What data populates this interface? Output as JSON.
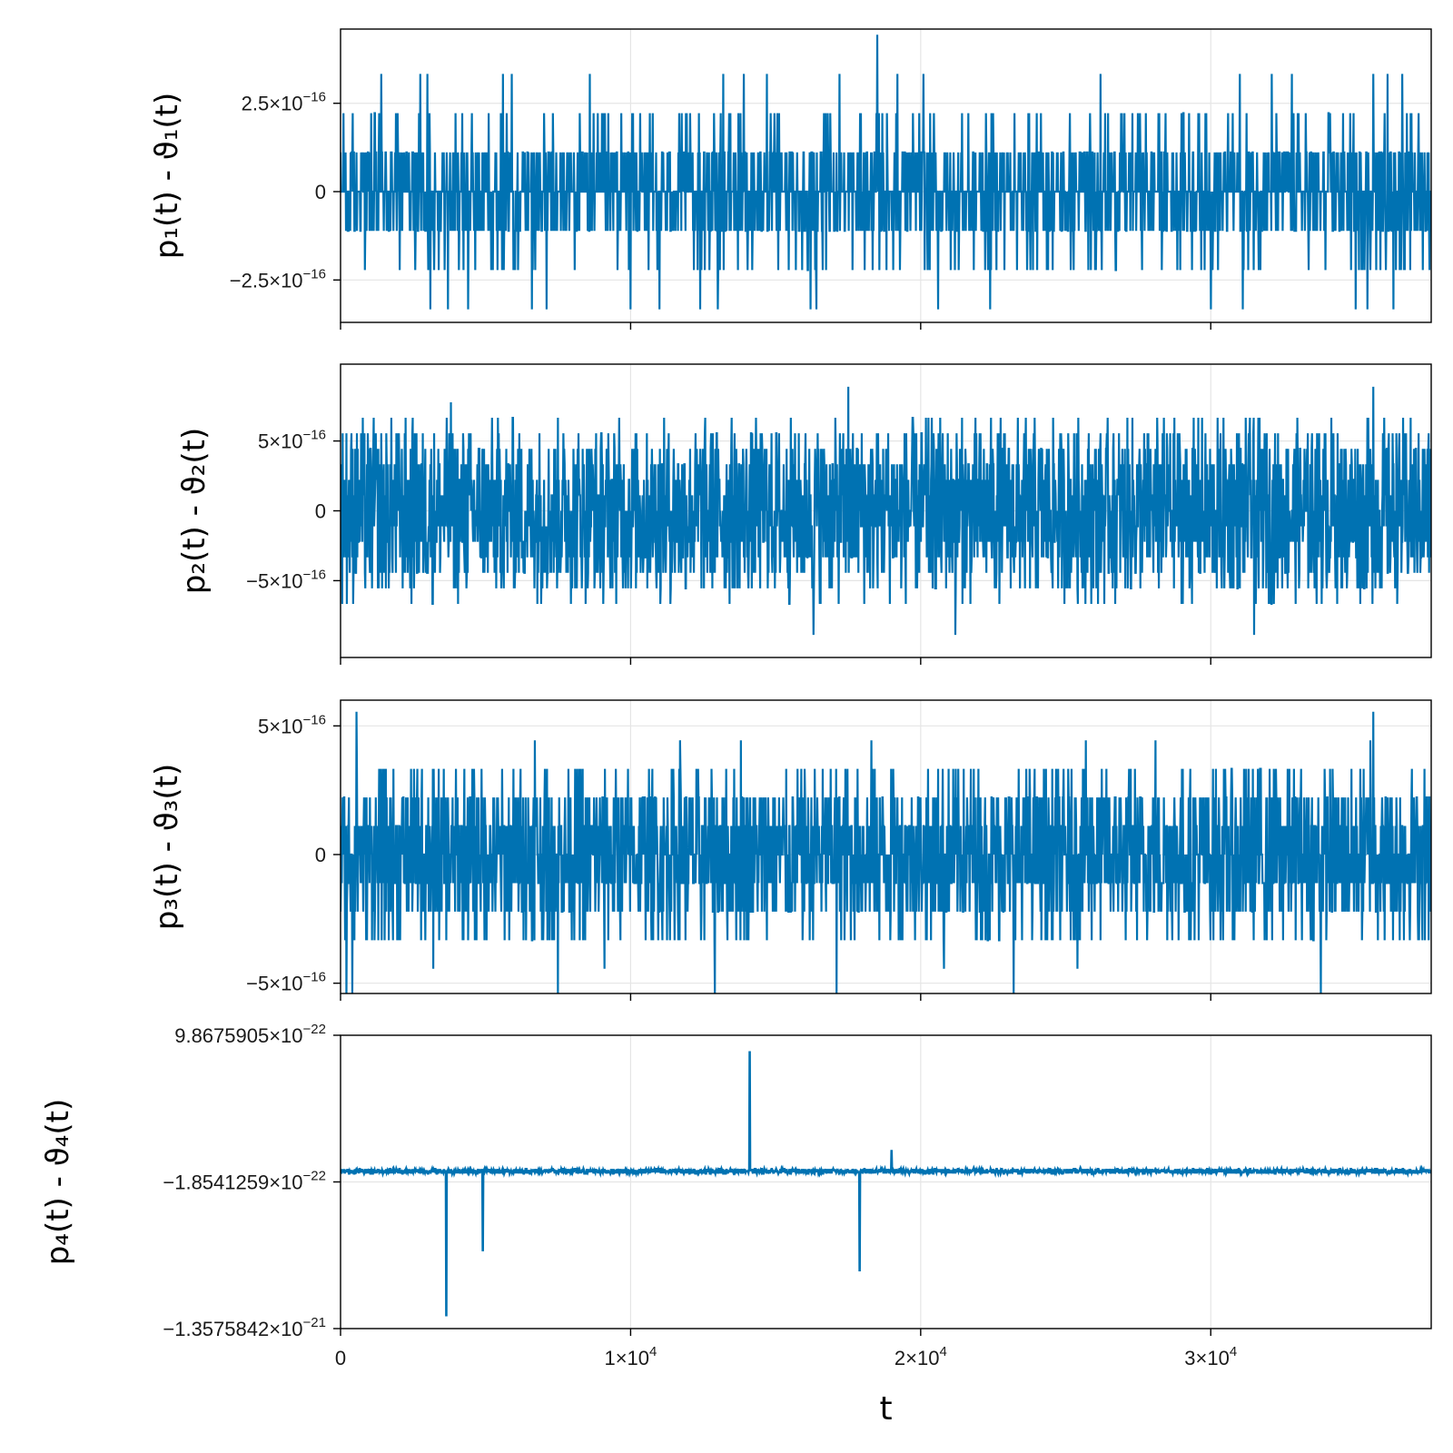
{
  "chart_data": {
    "type": "line",
    "color": "#0072b2",
    "xlabel": "t",
    "xlim": [
      0,
      37600
    ],
    "xticks": [
      {
        "value": 0,
        "label": "0",
        "exp": ""
      },
      {
        "value": 10000,
        "label": "1×10",
        "exp": "4"
      },
      {
        "value": 20000,
        "label": "2×10",
        "exp": "4"
      },
      {
        "value": 30000,
        "label": "3×10",
        "exp": "4"
      }
    ],
    "panels": [
      {
        "ylabel": "p₁(t) - ϑ₁(t)",
        "ylim": [
          -3.7e-16,
          4.6e-16
        ],
        "yticks": [
          {
            "value": 2.5e-16,
            "label": "2.5×10",
            "exp": "−16"
          },
          {
            "value": 0,
            "label": "0",
            "exp": ""
          },
          {
            "value": -2.5e-16,
            "label": "−2.5×10",
            "exp": "−16"
          }
        ],
        "quantum": 1.11e-16,
        "levels": [
          -2,
          -1,
          0,
          1,
          2
        ],
        "weights": [
          0.04,
          0.2,
          0.52,
          0.2,
          0.04
        ],
        "spikes": [
          {
            "x": 1400,
            "y": 3.33e-16
          },
          {
            "x": 2750,
            "y": 3.33e-16
          },
          {
            "x": 3000,
            "y": 3.33e-16
          },
          {
            "x": 5600,
            "y": 3.33e-16
          },
          {
            "x": 5900,
            "y": 3.33e-16
          },
          {
            "x": 8600,
            "y": 3.33e-16
          },
          {
            "x": 13200,
            "y": 3.33e-16
          },
          {
            "x": 13900,
            "y": 3.33e-16
          },
          {
            "x": 14700,
            "y": 3.33e-16
          },
          {
            "x": 18500,
            "y": 4.44e-16
          },
          {
            "x": 17200,
            "y": 3.33e-16
          },
          {
            "x": 19200,
            "y": 3.33e-16
          },
          {
            "x": 20100,
            "y": 3.33e-16
          },
          {
            "x": 26200,
            "y": 3.33e-16
          },
          {
            "x": 31000,
            "y": 3.33e-16
          },
          {
            "x": 32100,
            "y": 3.33e-16
          },
          {
            "x": 32800,
            "y": 3.33e-16
          },
          {
            "x": 35600,
            "y": 3.33e-16
          },
          {
            "x": 36100,
            "y": 3.33e-16
          },
          {
            "x": 36600,
            "y": 3.33e-16
          },
          {
            "x": 3100,
            "y": -3.33e-16
          },
          {
            "x": 3700,
            "y": -3.33e-16
          },
          {
            "x": 4400,
            "y": -3.33e-16
          },
          {
            "x": 6600,
            "y": -3.33e-16
          },
          {
            "x": 7100,
            "y": -3.33e-16
          },
          {
            "x": 10000,
            "y": -3.33e-16
          },
          {
            "x": 11000,
            "y": -3.33e-16
          },
          {
            "x": 12400,
            "y": -3.33e-16
          },
          {
            "x": 13000,
            "y": -3.33e-16
          },
          {
            "x": 16200,
            "y": -3.33e-16
          },
          {
            "x": 16400,
            "y": -3.33e-16
          },
          {
            "x": 20600,
            "y": -3.33e-16
          },
          {
            "x": 22400,
            "y": -3.33e-16
          },
          {
            "x": 30000,
            "y": -3.33e-16
          },
          {
            "x": 31100,
            "y": -3.33e-16
          },
          {
            "x": 35000,
            "y": -3.33e-16
          },
          {
            "x": 35400,
            "y": -3.33e-16
          },
          {
            "x": 36300,
            "y": -3.33e-16
          }
        ]
      },
      {
        "ylabel": "p₂(t) - ϑ₂(t)",
        "ylim": [
          -1.05e-15,
          1.05e-15
        ],
        "yticks": [
          {
            "value": 5e-16,
            "label": "5×10",
            "exp": "−16"
          },
          {
            "value": 0,
            "label": "0",
            "exp": ""
          },
          {
            "value": -5e-16,
            "label": "−5×10",
            "exp": "−16"
          }
        ],
        "quantum": 1.11e-16,
        "levels": [
          -6,
          -5,
          -4,
          -3,
          -2,
          -1,
          0,
          1,
          2,
          3,
          4,
          5,
          6
        ],
        "weights": [
          0.02,
          0.05,
          0.08,
          0.09,
          0.1,
          0.1,
          0.12,
          0.1,
          0.1,
          0.09,
          0.08,
          0.05,
          0.02
        ],
        "spikes": [
          {
            "x": 3800,
            "y": 7.77e-16
          },
          {
            "x": 17500,
            "y": 8.88e-16
          },
          {
            "x": 35600,
            "y": 8.88e-16
          },
          {
            "x": 16300,
            "y": -8.88e-16
          },
          {
            "x": 21200,
            "y": -8.88e-16
          },
          {
            "x": 31500,
            "y": -8.88e-16
          }
        ]
      },
      {
        "ylabel": "p₃(t) - ϑ₃(t)",
        "ylim": [
          -5.4e-16,
          6e-16
        ],
        "yticks": [
          {
            "value": 5e-16,
            "label": "5×10",
            "exp": "−16"
          },
          {
            "value": 0,
            "label": "0",
            "exp": ""
          },
          {
            "value": -5e-16,
            "label": "−5×10",
            "exp": "−16"
          }
        ],
        "quantum": 1.11e-16,
        "levels": [
          -3,
          -2,
          -1,
          0,
          1,
          2,
          3
        ],
        "weights": [
          0.05,
          0.13,
          0.2,
          0.24,
          0.2,
          0.13,
          0.05
        ],
        "spikes": [
          {
            "x": 550,
            "y": 5.55e-16
          },
          {
            "x": 35600,
            "y": 5.55e-16
          },
          {
            "x": 35500,
            "y": 4.44e-16
          },
          {
            "x": 6700,
            "y": 4.44e-16
          },
          {
            "x": 11700,
            "y": 4.44e-16
          },
          {
            "x": 13800,
            "y": 4.44e-16
          },
          {
            "x": 18300,
            "y": 4.44e-16
          },
          {
            "x": 25700,
            "y": 4.44e-16
          },
          {
            "x": 28100,
            "y": 4.44e-16
          },
          {
            "x": 200,
            "y": -5.55e-16
          },
          {
            "x": 400,
            "y": -5.55e-16
          },
          {
            "x": 7500,
            "y": -5.55e-16
          },
          {
            "x": 12900,
            "y": -5.55e-16
          },
          {
            "x": 17100,
            "y": -5.55e-16
          },
          {
            "x": 23200,
            "y": -5.55e-16
          },
          {
            "x": 33800,
            "y": -5.55e-16
          },
          {
            "x": 3200,
            "y": -4.44e-16
          },
          {
            "x": 9100,
            "y": -4.44e-16
          },
          {
            "x": 20800,
            "y": -4.44e-16
          },
          {
            "x": 25400,
            "y": -4.44e-16
          }
        ]
      },
      {
        "ylabel": "p₄(t) - ϑ₄(t)",
        "ylim": [
          -1.3575842e-21,
          9.8675905e-22
        ],
        "yticks": [
          {
            "value": 9.8675905e-22,
            "label": "9.8675905×10",
            "exp": "−22"
          },
          {
            "value": -1.8541259e-22,
            "label": "−1.8541259×10",
            "exp": "−22"
          },
          {
            "value": -1.3575842e-21,
            "label": "−1.3575842×10",
            "exp": "−21"
          }
        ],
        "base": -1e-22,
        "noise": 2.2e-23,
        "spikes": [
          {
            "x": 14100,
            "y": 8.6e-22
          },
          {
            "x": 19000,
            "y": 7e-23
          },
          {
            "x": 3650,
            "y": -1.26e-21
          },
          {
            "x": 4900,
            "y": -7.4e-22
          },
          {
            "x": 17900,
            "y": -9e-22
          }
        ]
      }
    ]
  }
}
